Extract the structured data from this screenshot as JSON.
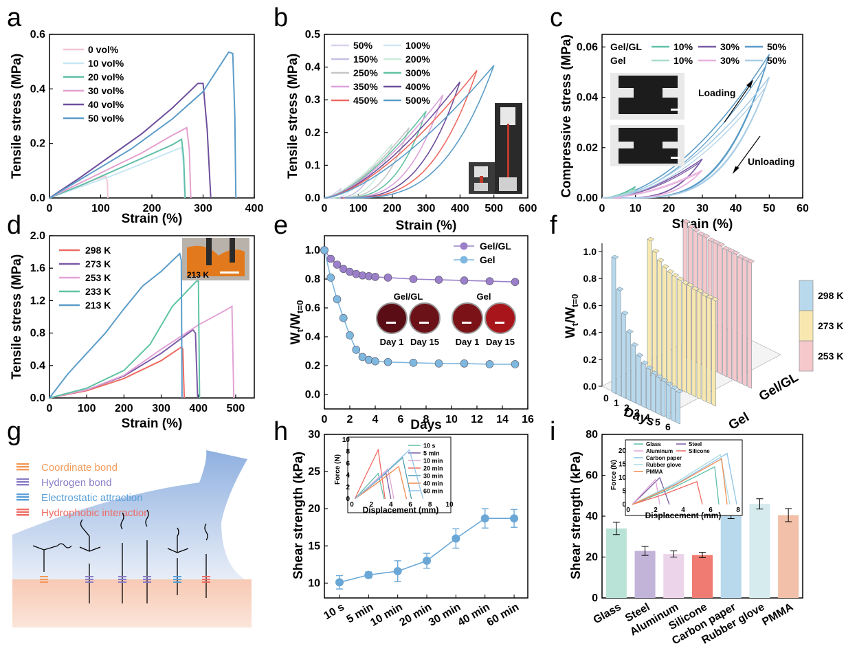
{
  "panel_labels": [
    "a",
    "b",
    "c",
    "d",
    "e",
    "f",
    "g",
    "h",
    "i"
  ],
  "chart_data": [
    {
      "id": "a",
      "type": "line",
      "xlabel": "Strain (%)",
      "ylabel": "Tensile stress (MPa)",
      "xlim": [
        0,
        400
      ],
      "ylim": [
        0,
        0.6
      ],
      "xticks": [
        0,
        100,
        200,
        300,
        400
      ],
      "yticks": [
        0.0,
        0.2,
        0.4,
        0.6
      ],
      "legend_position": "top-left",
      "series": [
        {
          "name": "0 vol%",
          "color": "#f3c7d8",
          "x": [
            0,
            30,
            60,
            90,
            110,
            113,
            114
          ],
          "y": [
            0,
            0.022,
            0.045,
            0.068,
            0.08,
            0.06,
            0
          ]
        },
        {
          "name": "10 vol%",
          "color": "#c7e7f4",
          "x": [
            0,
            60,
            120,
            180,
            240,
            258,
            262,
            264
          ],
          "y": [
            0,
            0.04,
            0.08,
            0.125,
            0.172,
            0.185,
            0.12,
            0
          ]
        },
        {
          "name": "20 vol%",
          "color": "#5fbfa8",
          "x": [
            0,
            60,
            120,
            180,
            240,
            258,
            262,
            265
          ],
          "y": [
            0,
            0.045,
            0.095,
            0.145,
            0.195,
            0.215,
            0.15,
            0
          ]
        },
        {
          "name": "30 vol%",
          "color": "#e4a0cf",
          "x": [
            0,
            60,
            120,
            180,
            240,
            268,
            273,
            276
          ],
          "y": [
            0,
            0.055,
            0.11,
            0.165,
            0.23,
            0.258,
            0.18,
            0
          ]
        },
        {
          "name": "40 vol%",
          "color": "#6e4f9c",
          "x": [
            0,
            60,
            120,
            180,
            240,
            290,
            300,
            308,
            315
          ],
          "y": [
            0,
            0.075,
            0.155,
            0.235,
            0.33,
            0.42,
            0.42,
            0.25,
            0
          ]
        },
        {
          "name": "50 vol%",
          "color": "#5a9cc8",
          "x": [
            0,
            80,
            160,
            240,
            300,
            350,
            358,
            362,
            364
          ],
          "y": [
            0,
            0.09,
            0.18,
            0.29,
            0.39,
            0.535,
            0.53,
            0.3,
            0
          ]
        }
      ]
    },
    {
      "id": "b",
      "type": "line",
      "xlabel": "Strain (%)",
      "ylabel": "Tensile stress (MPa)",
      "xlim": [
        0,
        600
      ],
      "ylim": [
        0,
        0.5
      ],
      "xticks": [
        0,
        100,
        200,
        300,
        400,
        500,
        600
      ],
      "yticks": [
        0.0,
        0.1,
        0.2,
        0.3,
        0.4,
        0.5
      ],
      "legend_position": "top-left",
      "series": [
        {
          "name": "50%",
          "color": "#d9d2ec",
          "max_strain": 50,
          "peak": 0.03
        },
        {
          "name": "100%",
          "color": "#cfe9f5",
          "max_strain": 100,
          "peak": 0.06
        },
        {
          "name": "150%",
          "color": "#c8bfe4",
          "max_strain": 150,
          "peak": 0.1
        },
        {
          "name": "200%",
          "color": "#c9ebd9",
          "max_strain": 200,
          "peak": 0.165
        },
        {
          "name": "250%",
          "color": "#c7c7c7",
          "max_strain": 250,
          "peak": 0.215
        },
        {
          "name": "300%",
          "color": "#62c2a3",
          "max_strain": 300,
          "peak": 0.265
        },
        {
          "name": "350%",
          "color": "#dba1d9",
          "max_strain": 350,
          "peak": 0.315
        },
        {
          "name": "400%",
          "color": "#6e4f9c",
          "max_strain": 400,
          "peak": 0.355
        },
        {
          "name": "450%",
          "color": "#ee6a62",
          "max_strain": 450,
          "peak": 0.39
        },
        {
          "name": "500%",
          "color": "#5a9cc8",
          "max_strain": 500,
          "peak": 0.405
        }
      ]
    },
    {
      "id": "c",
      "type": "line",
      "xlabel": "Strain (%)",
      "ylabel": "Compressive stress (MPa)",
      "xlim": [
        0,
        60
      ],
      "ylim": [
        0,
        0.065
      ],
      "xticks": [
        0,
        10,
        20,
        30,
        40,
        50,
        60
      ],
      "yticks": [
        0.0,
        0.02,
        0.04,
        0.06
      ],
      "legend_rows": [
        {
          "label": "Gel/GL",
          "entries": [
            {
              "name": "10%",
              "color": "#5fbfa8"
            },
            {
              "name": "30%",
              "color": "#7a5aa6"
            },
            {
              "name": "50%",
              "color": "#5a9cc8"
            }
          ]
        },
        {
          "label": "Gel",
          "entries": [
            {
              "name": "10%",
              "color": "#a8dcc8"
            },
            {
              "name": "30%",
              "color": "#e8b0dc"
            },
            {
              "name": "50%",
              "color": "#a9cde6"
            }
          ]
        }
      ],
      "annotations": [
        "Loading",
        "Unloading"
      ],
      "series": [
        {
          "group": "Gel/GL",
          "name": "10%",
          "color": "#5fbfa8",
          "max_strain": 10,
          "peak": 0.0045
        },
        {
          "group": "Gel/GL",
          "name": "30%",
          "color": "#7a5aa6",
          "max_strain": 30,
          "peak": 0.0155
        },
        {
          "group": "Gel/GL",
          "name": "50%",
          "color": "#5a9cc8",
          "max_strain": 50,
          "peak": 0.057
        },
        {
          "group": "Gel",
          "name": "10%",
          "color": "#a8dcc8",
          "max_strain": 10,
          "peak": 0.0035
        },
        {
          "group": "Gel",
          "name": "30%",
          "color": "#e8b0dc",
          "max_strain": 30,
          "peak": 0.011
        },
        {
          "group": "Gel",
          "name": "50%",
          "color": "#a9cde6",
          "max_strain": 50,
          "peak": 0.048
        }
      ]
    },
    {
      "id": "d",
      "type": "line",
      "xlabel": "Strain (%)",
      "ylabel": "Tensile stress (MPa)",
      "xlim": [
        0,
        550
      ],
      "ylim": [
        0,
        2.0
      ],
      "xticks": [
        0,
        100,
        200,
        300,
        400,
        500
      ],
      "yticks": [
        0.0,
        0.4,
        0.8,
        1.2,
        1.6,
        2.0
      ],
      "inset_label": "213 K",
      "series": [
        {
          "name": "298 K",
          "color": "#ee6a62",
          "x": [
            0,
            100,
            200,
            300,
            355,
            358,
            362
          ],
          "y": [
            0,
            0.09,
            0.24,
            0.46,
            0.63,
            0.6,
            0
          ]
        },
        {
          "name": "273 K",
          "color": "#7a5aa6",
          "x": [
            0,
            100,
            200,
            300,
            385,
            392,
            398
          ],
          "y": [
            0,
            0.1,
            0.27,
            0.55,
            0.84,
            0.8,
            0
          ]
        },
        {
          "name": "253 K",
          "color": "#e2a2d6",
          "x": [
            0,
            100,
            200,
            300,
            400,
            480,
            490,
            495
          ],
          "y": [
            0,
            0.1,
            0.28,
            0.6,
            0.9,
            1.1,
            1.13,
            0
          ]
        },
        {
          "name": "233 K",
          "color": "#5fc3a5",
          "x": [
            0,
            100,
            200,
            270,
            330,
            395,
            400,
            403
          ],
          "y": [
            0,
            0.12,
            0.34,
            0.66,
            1.13,
            1.44,
            1.44,
            0
          ]
        },
        {
          "name": "213 K",
          "color": "#5a9cc8",
          "x": [
            0,
            50,
            100,
            150,
            200,
            250,
            300,
            350,
            354,
            356
          ],
          "y": [
            0,
            0.3,
            0.55,
            0.8,
            1.1,
            1.38,
            1.56,
            1.78,
            1.7,
            0
          ]
        }
      ]
    },
    {
      "id": "e",
      "type": "line",
      "xlabel": "Days",
      "ylabel_main": "W",
      "ylabel_sub1": "t",
      "ylabel_mid": "/W",
      "ylabel_sub2": "t=0",
      "xlim": [
        0,
        16
      ],
      "ylim": [
        -0.1,
        1.1
      ],
      "xticks": [
        0,
        2,
        4,
        6,
        8,
        10,
        12,
        14,
        16
      ],
      "yticks": [
        0.0,
        0.2,
        0.4,
        0.6,
        0.8,
        1.0
      ],
      "photo_labels": [
        "Gel/GL",
        "Gel",
        "Day 1",
        "Day 15",
        "Day 1",
        "Day 15"
      ],
      "series": [
        {
          "name": "Gel/GL",
          "color": "#9b7fc9",
          "x": [
            0,
            0.5,
            1,
            1.5,
            2,
            2.5,
            3,
            3.5,
            4,
            5,
            7,
            9,
            11,
            13,
            15
          ],
          "y": [
            1.0,
            0.94,
            0.9,
            0.87,
            0.85,
            0.835,
            0.825,
            0.82,
            0.815,
            0.81,
            0.8,
            0.795,
            0.79,
            0.785,
            0.78
          ]
        },
        {
          "name": "Gel",
          "color": "#7fb8df",
          "x": [
            0,
            0.5,
            1,
            1.5,
            2,
            2.5,
            3,
            3.5,
            4,
            5,
            7,
            9,
            11,
            13,
            15
          ],
          "y": [
            1.0,
            0.81,
            0.66,
            0.53,
            0.41,
            0.31,
            0.26,
            0.24,
            0.23,
            0.225,
            0.22,
            0.215,
            0.215,
            0.21,
            0.21
          ]
        }
      ]
    },
    {
      "id": "f",
      "type": "bar",
      "xlabel": "Days",
      "ylabel_main": "W",
      "ylabel_sub1": "t",
      "ylabel_mid": "/W",
      "ylabel_sub2": "t=0",
      "ylim": [
        0,
        1.0
      ],
      "yticks": [
        0.0,
        0.2,
        0.4,
        0.6,
        0.8,
        1.0
      ],
      "xticks": [
        0,
        1,
        2,
        3,
        4,
        5,
        6
      ],
      "groups": [
        "Gel",
        "Gel/GL"
      ],
      "legend": [
        {
          "name": "298 K",
          "color": "#b8d8ec"
        },
        {
          "name": "273 K",
          "color": "#f8e8b0"
        },
        {
          "name": "253 K",
          "color": "#f5c8cc"
        }
      ],
      "series": [
        {
          "name": "298 K",
          "color": "#b8d8ec",
          "values": [
            1.0,
            0.78,
            0.62,
            0.5,
            0.42,
            0.36,
            0.32,
            0.3,
            0.28,
            0.27,
            0.26,
            0.25,
            0.24,
            0.23
          ]
        },
        {
          "name": "273 K",
          "color": "#f8e8b0",
          "values": [
            1.0,
            0.93,
            0.88,
            0.85,
            0.83,
            0.82,
            0.81,
            0.8,
            0.8,
            0.79,
            0.79,
            0.78,
            0.78,
            0.78
          ]
        },
        {
          "name": "253 K",
          "color": "#f5c8cc",
          "values": [
            1.0,
            0.98,
            0.97,
            0.96,
            0.96,
            0.95,
            0.95,
            0.95,
            0.94,
            0.94,
            0.94,
            0.93,
            0.93,
            0.93
          ]
        }
      ]
    },
    {
      "id": "h",
      "type": "line",
      "xlabel": "",
      "ylabel": "Shear strength (kPa)",
      "ylim": [
        8,
        30
      ],
      "yticks": [
        10,
        15,
        20,
        25,
        30
      ],
      "categories": [
        "10 s",
        "5 min",
        "10 min",
        "20 min",
        "30 min",
        "40 min",
        "60 min"
      ],
      "series": [
        {
          "name": "",
          "color": "#6aa7d6",
          "values": [
            10.1,
            11.1,
            11.6,
            13.0,
            16.0,
            18.7,
            18.7
          ],
          "errors": [
            0.9,
            0.4,
            1.4,
            1.0,
            1.3,
            1.3,
            1.2
          ]
        }
      ],
      "inset": {
        "xlabel": "Displacement (mm)",
        "ylabel": "Force (N)",
        "xlim": [
          0,
          10
        ],
        "ylim": [
          0,
          10
        ],
        "xticks": [
          0,
          2,
          4,
          6,
          8,
          10
        ],
        "yticks": [
          0,
          2,
          4,
          6,
          8,
          10
        ],
        "series": [
          {
            "name": "10 s",
            "color": "#5fbfa8",
            "peak_x": 2.7,
            "peak_y": 4.3,
            "end_x": 3.3
          },
          {
            "name": "5 min",
            "color": "#7a5aa6",
            "peak_x": 3.5,
            "peak_y": 4.4,
            "end_x": 4.0
          },
          {
            "name": "10 min",
            "color": "#e2a2d6",
            "peak_x": 3.7,
            "peak_y": 5.1,
            "end_x": 4.3
          },
          {
            "name": "20 min",
            "color": "#ee6a62",
            "peak_x": 2.7,
            "peak_y": 8.3,
            "end_x": 3.4
          },
          {
            "name": "30 min",
            "color": "#4a9cb0",
            "peak_x": 5.2,
            "peak_y": 7.0,
            "end_x": 6.1
          },
          {
            "name": "40 min",
            "color": "#f08a50",
            "peak_x": 4.8,
            "peak_y": 5.5,
            "end_x": 5.6
          },
          {
            "name": "60 min",
            "color": "#8fc3e8",
            "peak_x": 5.9,
            "peak_y": 8.3,
            "end_x": 7.3
          }
        ]
      }
    },
    {
      "id": "i",
      "type": "bar",
      "ylabel": "Shear strength (kPa)",
      "ylim": [
        0,
        80
      ],
      "yticks": [
        0,
        20,
        40,
        60,
        80
      ],
      "categories": [
        "Glass",
        "Steel",
        "Aluminum",
        "Silicone",
        "Carbon paper",
        "Rubber glove",
        "PMMA"
      ],
      "values": [
        34,
        23,
        21.5,
        21,
        42,
        46,
        40.5
      ],
      "errors": [
        3,
        2.2,
        1.5,
        1.3,
        3.2,
        2.5,
        3.2
      ],
      "colors": [
        "#b9e3d6",
        "#c1b4d8",
        "#ecd5ea",
        "#ef7b72",
        "#b8d8ec",
        "#d5ebee",
        "#f2c0a8"
      ],
      "inset": {
        "xlabel": "Displacement (mm)",
        "ylabel": "Force (N)",
        "xlim": [
          0,
          8
        ],
        "ylim": [
          0,
          22
        ],
        "xticks": [
          0,
          2,
          4,
          6,
          8
        ],
        "yticks": [
          0,
          5,
          10,
          15,
          20
        ],
        "series": [
          {
            "name": "Glass",
            "color": "#5fbfa8",
            "peak_x": 6.3,
            "peak_y": 14.0,
            "end_x": 6.6
          },
          {
            "name": "Steel",
            "color": "#7a5aa6",
            "peak_x": 2.3,
            "peak_y": 10.0,
            "end_x": 3.0
          },
          {
            "name": "Aluminum",
            "color": "#e2a2d6",
            "peak_x": 2.0,
            "peak_y": 9.3,
            "end_x": 2.3
          },
          {
            "name": "Silicone",
            "color": "#ee6a62",
            "peak_x": 5.0,
            "peak_y": 8.5,
            "end_x": 5.4
          },
          {
            "name": "Carbon paper",
            "color": "#8fc3e8",
            "peak_x": 7.2,
            "peak_y": 19.0,
            "end_x": 7.9
          },
          {
            "name": "Rubber glove",
            "color": "#a9dbe0",
            "peak_x": 6.7,
            "peak_y": 18.5,
            "end_x": 7.4
          },
          {
            "name": "PMMA",
            "color": "#f08a50",
            "peak_x": 6.8,
            "peak_y": 17.0,
            "end_x": 7.2
          }
        ]
      }
    }
  ],
  "schematic": {
    "legend": [
      {
        "name": "Coordinate bond",
        "color": "#f39a5a"
      },
      {
        "name": "Hydrogen bond",
        "color": "#8a7cc6"
      },
      {
        "name": "Electrostatic attraction",
        "color": "#5a9fd8"
      },
      {
        "name": "Hydrophobic interaction",
        "color": "#ee6a62"
      }
    ]
  }
}
